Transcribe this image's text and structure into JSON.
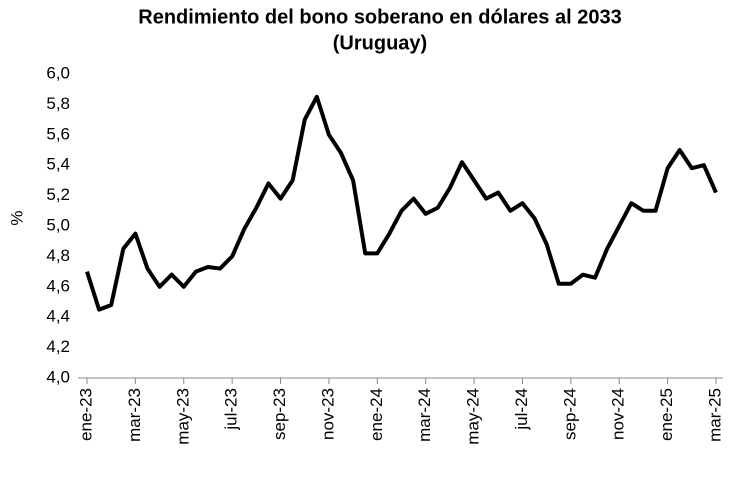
{
  "chart_data": {
    "type": "line",
    "title": [
      "Rendimiento del bono soberano en dólares al 2033",
      "(Uruguay)"
    ],
    "y_label": "%",
    "categories": [
      "ene-23",
      null,
      null,
      null,
      "mar-23",
      null,
      null,
      null,
      "may-23",
      null,
      null,
      null,
      "jul-23",
      null,
      null,
      null,
      "sep-23",
      null,
      null,
      null,
      "nov-23",
      null,
      null,
      null,
      "ene-24",
      null,
      null,
      null,
      "mar-24",
      null,
      null,
      null,
      "may-24",
      null,
      null,
      null,
      "jul-24",
      null,
      null,
      null,
      "sep-24",
      null,
      null,
      null,
      "nov-24",
      null,
      null,
      null,
      "ene-25",
      null,
      null,
      null,
      "mar-25"
    ],
    "series": [
      {
        "color": "#000000",
        "values": [
          4.7,
          4.45,
          4.48,
          4.85,
          4.95,
          4.72,
          4.6,
          4.68,
          4.6,
          4.7,
          4.73,
          4.72,
          4.8,
          4.98,
          5.12,
          5.28,
          5.18,
          5.3,
          5.7,
          5.85,
          5.6,
          5.48,
          5.3,
          4.82,
          4.82,
          4.95,
          5.1,
          5.18,
          5.08,
          5.12,
          5.25,
          5.42,
          5.3,
          5.18,
          5.22,
          5.1,
          5.15,
          5.05,
          4.88,
          4.62,
          4.62,
          4.68,
          4.66,
          4.85,
          5.0,
          5.15,
          5.1,
          5.1,
          5.38,
          5.5,
          5.38,
          5.4,
          5.22
        ]
      }
    ],
    "ylim": [
      4.0,
      6.0
    ],
    "yticks": [
      {
        "value": 4.0,
        "label": "4,0"
      },
      {
        "value": 4.2,
        "label": "4,2"
      },
      {
        "value": 4.4,
        "label": "4,4"
      },
      {
        "value": 4.6,
        "label": "4,6"
      },
      {
        "value": 4.8,
        "label": "4,8"
      },
      {
        "value": 5.0,
        "label": "5,0"
      },
      {
        "value": 5.2,
        "label": "5,2"
      },
      {
        "value": 5.4,
        "label": "5,4"
      },
      {
        "value": 5.6,
        "label": "5,6"
      },
      {
        "value": 5.8,
        "label": "5,8"
      },
      {
        "value": 6.0,
        "label": "6,0"
      }
    ],
    "grid": false
  }
}
